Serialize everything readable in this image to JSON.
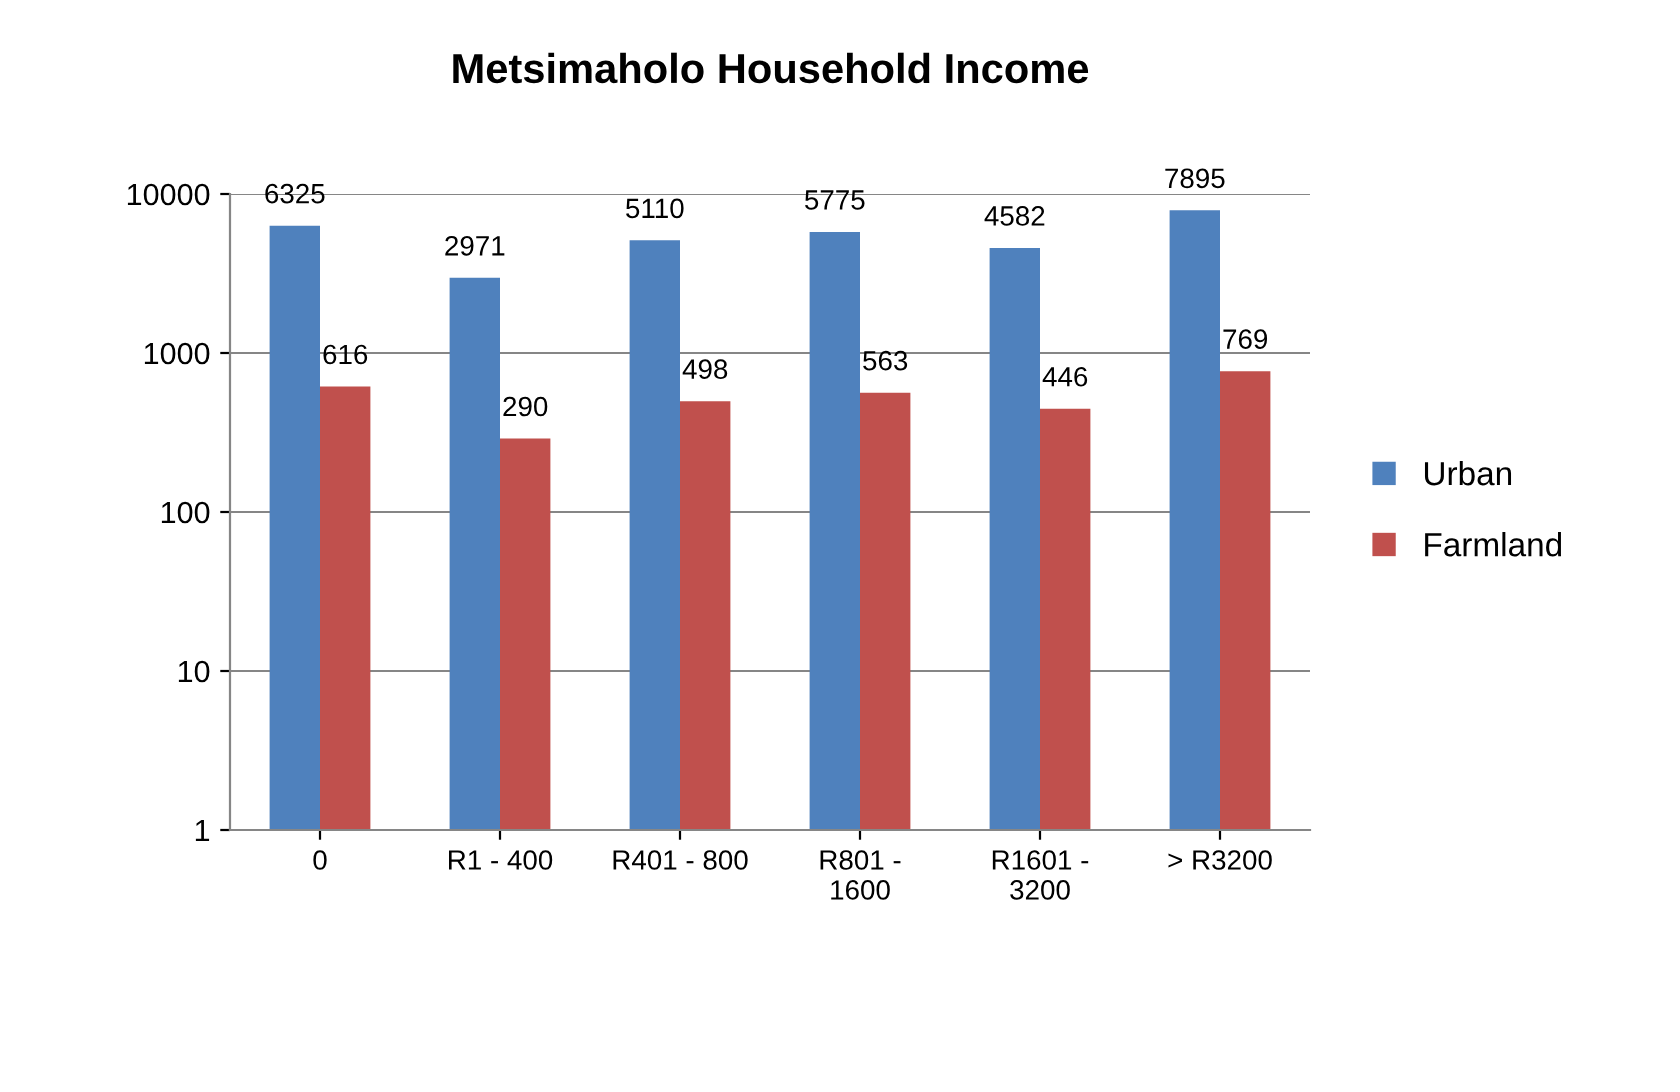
{
  "chart_data": {
    "type": "bar",
    "title": "Metsimaholo Household Income",
    "categories": [
      "0",
      "R1 - 400",
      "R401 - 800",
      "R801 -\n1600",
      "R1601 -\n3200",
      "> R3200"
    ],
    "series": [
      {
        "name": "Urban",
        "color": "#4f81bd",
        "values": [
          6325,
          2971,
          5110,
          5775,
          4582,
          7895
        ]
      },
      {
        "name": "Farmland",
        "color": "#c0504d",
        "values": [
          616,
          290,
          498,
          563,
          446,
          769
        ]
      }
    ],
    "log": "y",
    "ylim": [
      1,
      10000
    ],
    "yticks": [
      1,
      10,
      100,
      1000,
      10000
    ],
    "grid": "y",
    "legend": "right",
    "data_labels": true
  }
}
